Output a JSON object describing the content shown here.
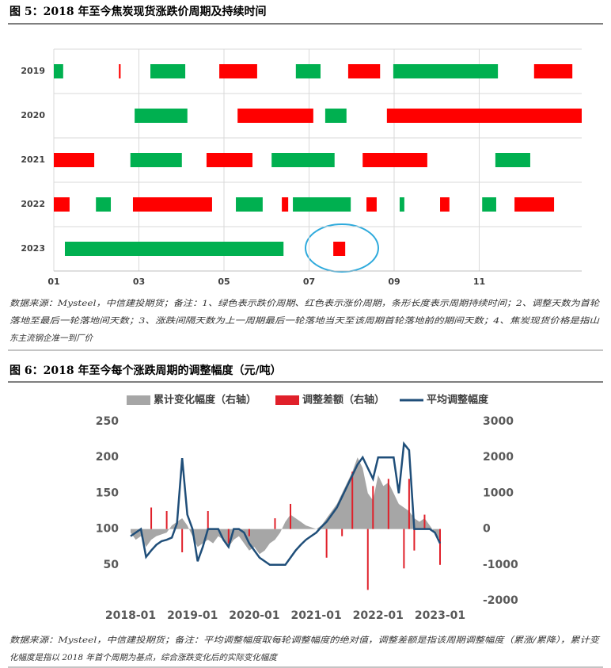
{
  "chart_data": [
    {
      "type": "timeline",
      "title": "图 5：2018 年至今焦炭现货涨跌价周期及持续时间",
      "categories": [
        "2019",
        "2020",
        "2021",
        "2022",
        "2023"
      ],
      "xlim": [
        1,
        13.41
      ],
      "xticks": [
        {
          "value": 1,
          "label": "01"
        },
        {
          "value": 3,
          "label": "03"
        },
        {
          "value": 5,
          "label": "05"
        },
        {
          "value": 7,
          "label": "07"
        },
        {
          "value": 9,
          "label": "09"
        },
        {
          "value": 11,
          "label": "11"
        }
      ],
      "grid": true,
      "segments": [
        {
          "row": 0,
          "start": 1.0,
          "end": 1.22,
          "color": "#00b050"
        },
        {
          "row": 0,
          "start": 2.53,
          "end": 2.57,
          "color": "#ff0000"
        },
        {
          "row": 0,
          "start": 3.27,
          "end": 4.09,
          "color": "#00b050"
        },
        {
          "row": 0,
          "start": 4.89,
          "end": 5.78,
          "color": "#ff0000"
        },
        {
          "row": 0,
          "start": 6.69,
          "end": 7.27,
          "color": "#00b050"
        },
        {
          "row": 0,
          "start": 7.92,
          "end": 8.67,
          "color": "#ff0000"
        },
        {
          "row": 0,
          "start": 8.98,
          "end": 11.44,
          "color": "#00b050"
        },
        {
          "row": 0,
          "start": 12.29,
          "end": 13.19,
          "color": "#ff0000"
        },
        {
          "row": 1,
          "start": 2.9,
          "end": 4.14,
          "color": "#00b050"
        },
        {
          "row": 1,
          "start": 5.32,
          "end": 7.1,
          "color": "#ff0000"
        },
        {
          "row": 1,
          "start": 7.38,
          "end": 7.88,
          "color": "#00b050"
        },
        {
          "row": 1,
          "start": 8.83,
          "end": 13.41,
          "color": "#ff0000"
        },
        {
          "row": 2,
          "start": 1.0,
          "end": 1.95,
          "color": "#ff0000"
        },
        {
          "row": 2,
          "start": 2.8,
          "end": 4.01,
          "color": "#00b050"
        },
        {
          "row": 2,
          "start": 4.59,
          "end": 5.67,
          "color": "#ff0000"
        },
        {
          "row": 2,
          "start": 6.12,
          "end": 7.6,
          "color": "#00b050"
        },
        {
          "row": 2,
          "start": 8.26,
          "end": 9.78,
          "color": "#ff0000"
        },
        {
          "row": 2,
          "start": 11.38,
          "end": 12.2,
          "color": "#00b050"
        },
        {
          "row": 3,
          "start": 1.0,
          "end": 1.37,
          "color": "#ff0000"
        },
        {
          "row": 3,
          "start": 1.99,
          "end": 2.34,
          "color": "#00b050"
        },
        {
          "row": 3,
          "start": 2.86,
          "end": 4.72,
          "color": "#ff0000"
        },
        {
          "row": 3,
          "start": 5.28,
          "end": 5.91,
          "color": "#00b050"
        },
        {
          "row": 3,
          "start": 6.36,
          "end": 6.51,
          "color": "#ff0000"
        },
        {
          "row": 3,
          "start": 6.62,
          "end": 7.98,
          "color": "#00b050"
        },
        {
          "row": 3,
          "start": 8.35,
          "end": 8.59,
          "color": "#ff0000"
        },
        {
          "row": 3,
          "start": 9.13,
          "end": 9.24,
          "color": "#00b050"
        },
        {
          "row": 3,
          "start": 10.08,
          "end": 10.3,
          "color": "#ff0000"
        },
        {
          "row": 3,
          "start": 11.07,
          "end": 11.4,
          "color": "#00b050"
        },
        {
          "row": 3,
          "start": 11.83,
          "end": 12.76,
          "color": "#ff0000"
        },
        {
          "row": 4,
          "start": 1.26,
          "end": 6.4,
          "color": "#00b050"
        },
        {
          "row": 4,
          "start": 7.57,
          "end": 7.85,
          "color": "#ff0000"
        }
      ],
      "note": [
        "数据来源：Mysteel，中信建投期货；备注：1、绿色表示跌价周期、红色表示涨价周期，条形长度表示周期持续时间；2、调整天数为首轮",
        "落地至最后一轮落地间天数；3、涨跌间隔天数为上一周期最后一轮落地当天至该周期首轮落地前的期间天数；4、焦炭现货价格是指山",
        "东主流钢企准一到厂价"
      ]
    },
    {
      "type": "combo",
      "title": "图 6：2018 年至今每个涨跌周期的调整幅度（元/吨）",
      "x": [
        "2018-01",
        "2018-02",
        "2018-03",
        "2018-04",
        "2018-05",
        "2018-06",
        "2018-07",
        "2018-08",
        "2018-09",
        "2018-10",
        "2018-11",
        "2018-12",
        "2019-01",
        "2019-02",
        "2019-03",
        "2019-04",
        "2019-05",
        "2019-06",
        "2019-07",
        "2019-08",
        "2019-09",
        "2019-10",
        "2019-11",
        "2019-12",
        "2020-01",
        "2020-02",
        "2020-03",
        "2020-04",
        "2020-05",
        "2020-06",
        "2020-07",
        "2020-08",
        "2020-09",
        "2020-10",
        "2020-11",
        "2020-12",
        "2021-01",
        "2021-02",
        "2021-03",
        "2021-04",
        "2021-05",
        "2021-06",
        "2021-07",
        "2021-08",
        "2021-09",
        "2021-10",
        "2021-11",
        "2021-12",
        "2022-01",
        "2022-02",
        "2022-03",
        "2022-04",
        "2022-05",
        "2022-06",
        "2022-07",
        "2022-08",
        "2022-09",
        "2022-10",
        "2022-11",
        "2022-12",
        "2023-01"
      ],
      "xticks": [
        "2018-01",
        "2019-01",
        "2020-01",
        "2021-01",
        "2022-01",
        "2023-01"
      ],
      "ylim": [
        0,
        250
      ],
      "yticks": [
        50,
        100,
        150,
        200,
        250
      ],
      "y2lim": [
        -2000,
        3000
      ],
      "y2ticks": [
        -2000,
        -1000,
        0,
        1000,
        2000,
        3000
      ],
      "series": [
        {
          "name": "累计变化幅度（右轴）",
          "type": "area",
          "axis": "y2",
          "color": "#a6a6a6",
          "values": [
            -100,
            -300,
            -200,
            -500,
            -300,
            -200,
            -150,
            -100,
            100,
            200,
            300,
            100,
            -200,
            -500,
            -400,
            -300,
            -400,
            -200,
            -300,
            -500,
            -300,
            -200,
            -400,
            -600,
            -500,
            -700,
            -600,
            -400,
            -300,
            -100,
            200,
            400,
            300,
            200,
            100,
            50,
            0,
            100,
            300,
            500,
            700,
            1000,
            1300,
            1600,
            2000,
            1700,
            1000,
            800,
            1500,
            1200,
            1300,
            1000,
            700,
            600,
            500,
            300,
            200,
            300,
            100,
            -100,
            -300
          ]
        },
        {
          "name": "调整差额（右轴）",
          "type": "bar",
          "axis": "y2",
          "color": "#e0202a",
          "values": [
            null,
            null,
            null,
            null,
            600,
            null,
            null,
            500,
            null,
            null,
            -650,
            null,
            null,
            null,
            null,
            500,
            null,
            null,
            null,
            -400,
            null,
            null,
            null,
            -200,
            null,
            null,
            null,
            null,
            300,
            null,
            null,
            700,
            null,
            null,
            null,
            null,
            null,
            null,
            -800,
            null,
            null,
            -200,
            null,
            1600,
            null,
            null,
            -1700,
            1200,
            null,
            null,
            1400,
            null,
            null,
            -1100,
            1400,
            -600,
            null,
            400,
            null,
            null,
            -1000
          ]
        },
        {
          "name": "平均调整幅度",
          "type": "line",
          "color": "#1f4e79",
          "values": [
            90,
            95,
            100,
            61,
            70,
            78,
            83,
            85,
            88,
            108,
            199,
            120,
            100,
            55,
            75,
            100,
            100,
            100,
            85,
            75,
            100,
            100,
            95,
            80,
            70,
            60,
            55,
            50,
            50,
            50,
            50,
            60,
            70,
            78,
            85,
            90,
            95,
            103,
            110,
            120,
            130,
            145,
            160,
            175,
            190,
            200,
            185,
            170,
            200,
            200,
            200,
            200,
            150,
            219,
            210,
            100,
            100,
            100,
            100,
            95,
            80
          ]
        }
      ],
      "note": [
        "数据来源：Mysteel，中信建投期货；备注：平均调整幅度取每轮调整幅度的绝对值，调整差额是指该周期调整幅度（累涨/累降），累计变",
        "化幅度是指以 2018 年首个周期为基点，综合涨跌变化后的实际变化幅度"
      ]
    }
  ]
}
